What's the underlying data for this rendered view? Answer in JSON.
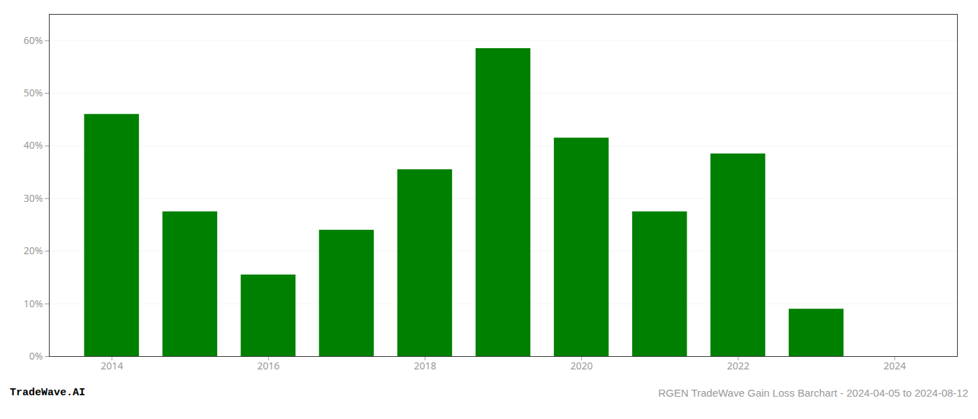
{
  "chart_data": {
    "type": "bar",
    "x": [
      2014,
      2015,
      2016,
      2017,
      2018,
      2019,
      2020,
      2021,
      2022,
      2023
    ],
    "values": [
      46.0,
      27.5,
      15.5,
      24.0,
      35.5,
      58.5,
      41.5,
      27.5,
      38.5,
      9.0
    ],
    "color": "#008000",
    "xlim": [
      2013.2,
      2024.8
    ],
    "xticks": [
      2014,
      2016,
      2018,
      2020,
      2022,
      2024
    ],
    "ylim": [
      0,
      65
    ],
    "yticks": [
      {
        "value": 0,
        "label": "0%"
      },
      {
        "value": 10,
        "label": "10%"
      },
      {
        "value": 20,
        "label": "20%"
      },
      {
        "value": 30,
        "label": "30%"
      },
      {
        "value": 40,
        "label": "40%"
      },
      {
        "value": 50,
        "label": "50%"
      },
      {
        "value": 60,
        "label": "60%"
      }
    ],
    "grid": true,
    "annotations": [
      "TradeWave.AI",
      "RGEN TradeWave Gain Loss Barchart - 2024-04-05 to 2024-08-12"
    ]
  }
}
